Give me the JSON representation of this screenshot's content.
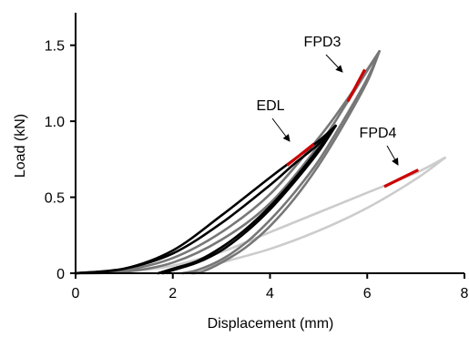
{
  "chart_data": {
    "type": "line",
    "title": "",
    "xlabel": "Displacement (mm)",
    "ylabel": "Load (kN)",
    "xlim": [
      0,
      8
    ],
    "ylim": [
      0,
      1.6
    ],
    "xticks": [
      "0",
      "2",
      "4",
      "6",
      "8"
    ],
    "yticks": [
      "0",
      "0.5",
      "1.0",
      "1.5"
    ],
    "grid": false,
    "legend": "none",
    "series": [
      {
        "name": "EDL",
        "color": "#000000",
        "loops": [
          {
            "loading": [
              [
                0,
                0
              ],
              [
                1,
                0.03
              ],
              [
                2,
                0.15
              ],
              [
                3,
                0.38
              ],
              [
                4,
                0.63
              ],
              [
                4.5,
                0.75
              ],
              [
                5,
                0.87
              ],
              [
                5.35,
                0.97
              ]
            ],
            "unloading": [
              [
                5.35,
                0.97
              ],
              [
                5,
                0.82
              ],
              [
                4.5,
                0.62
              ],
              [
                4,
                0.44
              ],
              [
                3.5,
                0.29
              ],
              [
                3,
                0.17
              ],
              [
                2.5,
                0.08
              ],
              [
                2,
                0.03
              ],
              [
                1.7,
                0
              ]
            ]
          },
          {
            "loading": [
              [
                0,
                0
              ],
              [
                1,
                0.03
              ],
              [
                2,
                0.13
              ],
              [
                3,
                0.33
              ],
              [
                4,
                0.58
              ],
              [
                4.5,
                0.72
              ],
              [
                5,
                0.85
              ],
              [
                5.35,
                0.97
              ]
            ],
            "unloading": [
              [
                5.35,
                0.97
              ],
              [
                5,
                0.8
              ],
              [
                4.5,
                0.6
              ],
              [
                4,
                0.42
              ],
              [
                3.5,
                0.27
              ],
              [
                3,
                0.15
              ],
              [
                2.5,
                0.07
              ],
              [
                2,
                0.02
              ],
              [
                1.8,
                0
              ]
            ]
          }
        ],
        "highlight": [
          [
            4.35,
            0.71
          ],
          [
            4.9,
            0.85
          ]
        ]
      },
      {
        "name": "FPD3",
        "color": "#777777",
        "loops": [
          {
            "loading": [
              [
                0,
                0
              ],
              [
                1,
                0.02
              ],
              [
                2,
                0.1
              ],
              [
                3,
                0.27
              ],
              [
                4,
                0.52
              ],
              [
                5,
                0.89
              ],
              [
                5.6,
                1.15
              ],
              [
                6.25,
                1.46
              ]
            ],
            "unloading": [
              [
                6.25,
                1.46
              ],
              [
                6,
                1.28
              ],
              [
                5.5,
                1.0
              ],
              [
                5,
                0.74
              ],
              [
                4.5,
                0.53
              ],
              [
                4,
                0.35
              ],
              [
                3.5,
                0.2
              ],
              [
                3,
                0.09
              ],
              [
                2.5,
                0.02
              ],
              [
                2.2,
                0
              ]
            ]
          },
          {
            "loading": [
              [
                0,
                0
              ],
              [
                1,
                0.01
              ],
              [
                2,
                0.07
              ],
              [
                3,
                0.22
              ],
              [
                4,
                0.46
              ],
              [
                5,
                0.84
              ],
              [
                5.6,
                1.13
              ],
              [
                6.25,
                1.46
              ]
            ],
            "unloading": [
              [
                6.25,
                1.46
              ],
              [
                6,
                1.26
              ],
              [
                5.5,
                0.97
              ],
              [
                5,
                0.71
              ],
              [
                4.5,
                0.49
              ],
              [
                4,
                0.31
              ],
              [
                3.5,
                0.17
              ],
              [
                3,
                0.07
              ],
              [
                2.6,
                0.01
              ],
              [
                2.4,
                0
              ]
            ]
          }
        ],
        "highlight": [
          [
            5.6,
            1.13
          ],
          [
            5.95,
            1.34
          ]
        ]
      },
      {
        "name": "FPD4",
        "color": "#cccccc",
        "loops": [
          {
            "loading": [
              [
                0,
                0
              ],
              [
                1,
                0.01
              ],
              [
                2,
                0.05
              ],
              [
                3,
                0.14
              ],
              [
                4,
                0.27
              ],
              [
                5,
                0.4
              ],
              [
                6,
                0.53
              ],
              [
                7,
                0.66
              ],
              [
                7.6,
                0.76
              ]
            ],
            "unloading": [
              [
                7.6,
                0.76
              ],
              [
                7,
                0.62
              ],
              [
                6,
                0.43
              ],
              [
                5,
                0.28
              ],
              [
                4,
                0.16
              ],
              [
                3,
                0.07
              ],
              [
                2.5,
                0.02
              ],
              [
                2.2,
                0
              ]
            ]
          }
        ],
        "highlight": [
          [
            6.35,
            0.57
          ],
          [
            7.05,
            0.68
          ]
        ]
      }
    ],
    "annotations": [
      {
        "text": "FPD3",
        "arrow_to": [
          5.9,
          1.22
        ]
      },
      {
        "text": "EDL",
        "arrow_to": [
          4.6,
          0.8
        ]
      },
      {
        "text": "FPD4",
        "arrow_to": [
          6.5,
          0.6
        ]
      }
    ],
    "highlight_color": "#cc0000"
  }
}
